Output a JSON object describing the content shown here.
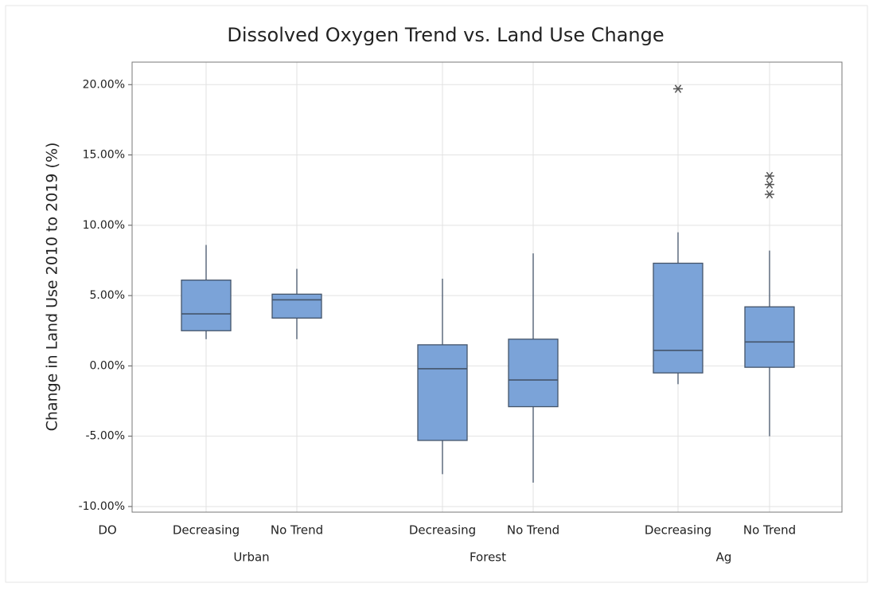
{
  "chart_data": {
    "type": "box",
    "title": "Dissolved Oxygen Trend vs. Land Use Change",
    "ylabel": "Change in Land Use 2010 to 2019 (%)",
    "xlabel": "DO",
    "ylim": [
      -10.4,
      21.6
    ],
    "yticks": [
      {
        "value": -10,
        "label": "-10.00%"
      },
      {
        "value": -5,
        "label": "-5.00%"
      },
      {
        "value": 0,
        "label": "0.00%"
      },
      {
        "value": 5,
        "label": "5.00%"
      },
      {
        "value": 10,
        "label": "10.00%"
      },
      {
        "value": 15,
        "label": "15.00%"
      },
      {
        "value": 20,
        "label": "20.00%"
      }
    ],
    "grid": true,
    "color": "#7ba3d8",
    "groups": [
      {
        "name": "Urban",
        "boxes": [
          {
            "label": "Decreasing",
            "whislo": 1.9,
            "q1": 2.5,
            "med": 3.7,
            "q3": 6.1,
            "whishi": 8.6,
            "fliers": []
          },
          {
            "label": "No Trend",
            "whislo": 1.9,
            "q1": 3.4,
            "med": 4.7,
            "q3": 5.1,
            "whishi": 6.9,
            "fliers": []
          }
        ]
      },
      {
        "name": "Forest",
        "boxes": [
          {
            "label": "Decreasing",
            "whislo": -7.7,
            "q1": -5.3,
            "med": -0.2,
            "q3": 1.5,
            "whishi": 6.2,
            "fliers": []
          },
          {
            "label": "No Trend",
            "whislo": -8.3,
            "q1": -2.9,
            "med": -1.0,
            "q3": 1.9,
            "whishi": 8.0,
            "fliers": []
          }
        ]
      },
      {
        "name": "Ag",
        "boxes": [
          {
            "label": "Decreasing",
            "whislo": -1.3,
            "q1": -0.5,
            "med": 1.1,
            "q3": 7.3,
            "whishi": 9.5,
            "fliers": [
              19.7
            ]
          },
          {
            "label": "No Trend",
            "whislo": -5.0,
            "q1": -0.1,
            "med": 1.7,
            "q3": 4.2,
            "whishi": 8.2,
            "fliers": [
              13.5,
              12.9,
              12.2
            ]
          }
        ]
      }
    ]
  }
}
